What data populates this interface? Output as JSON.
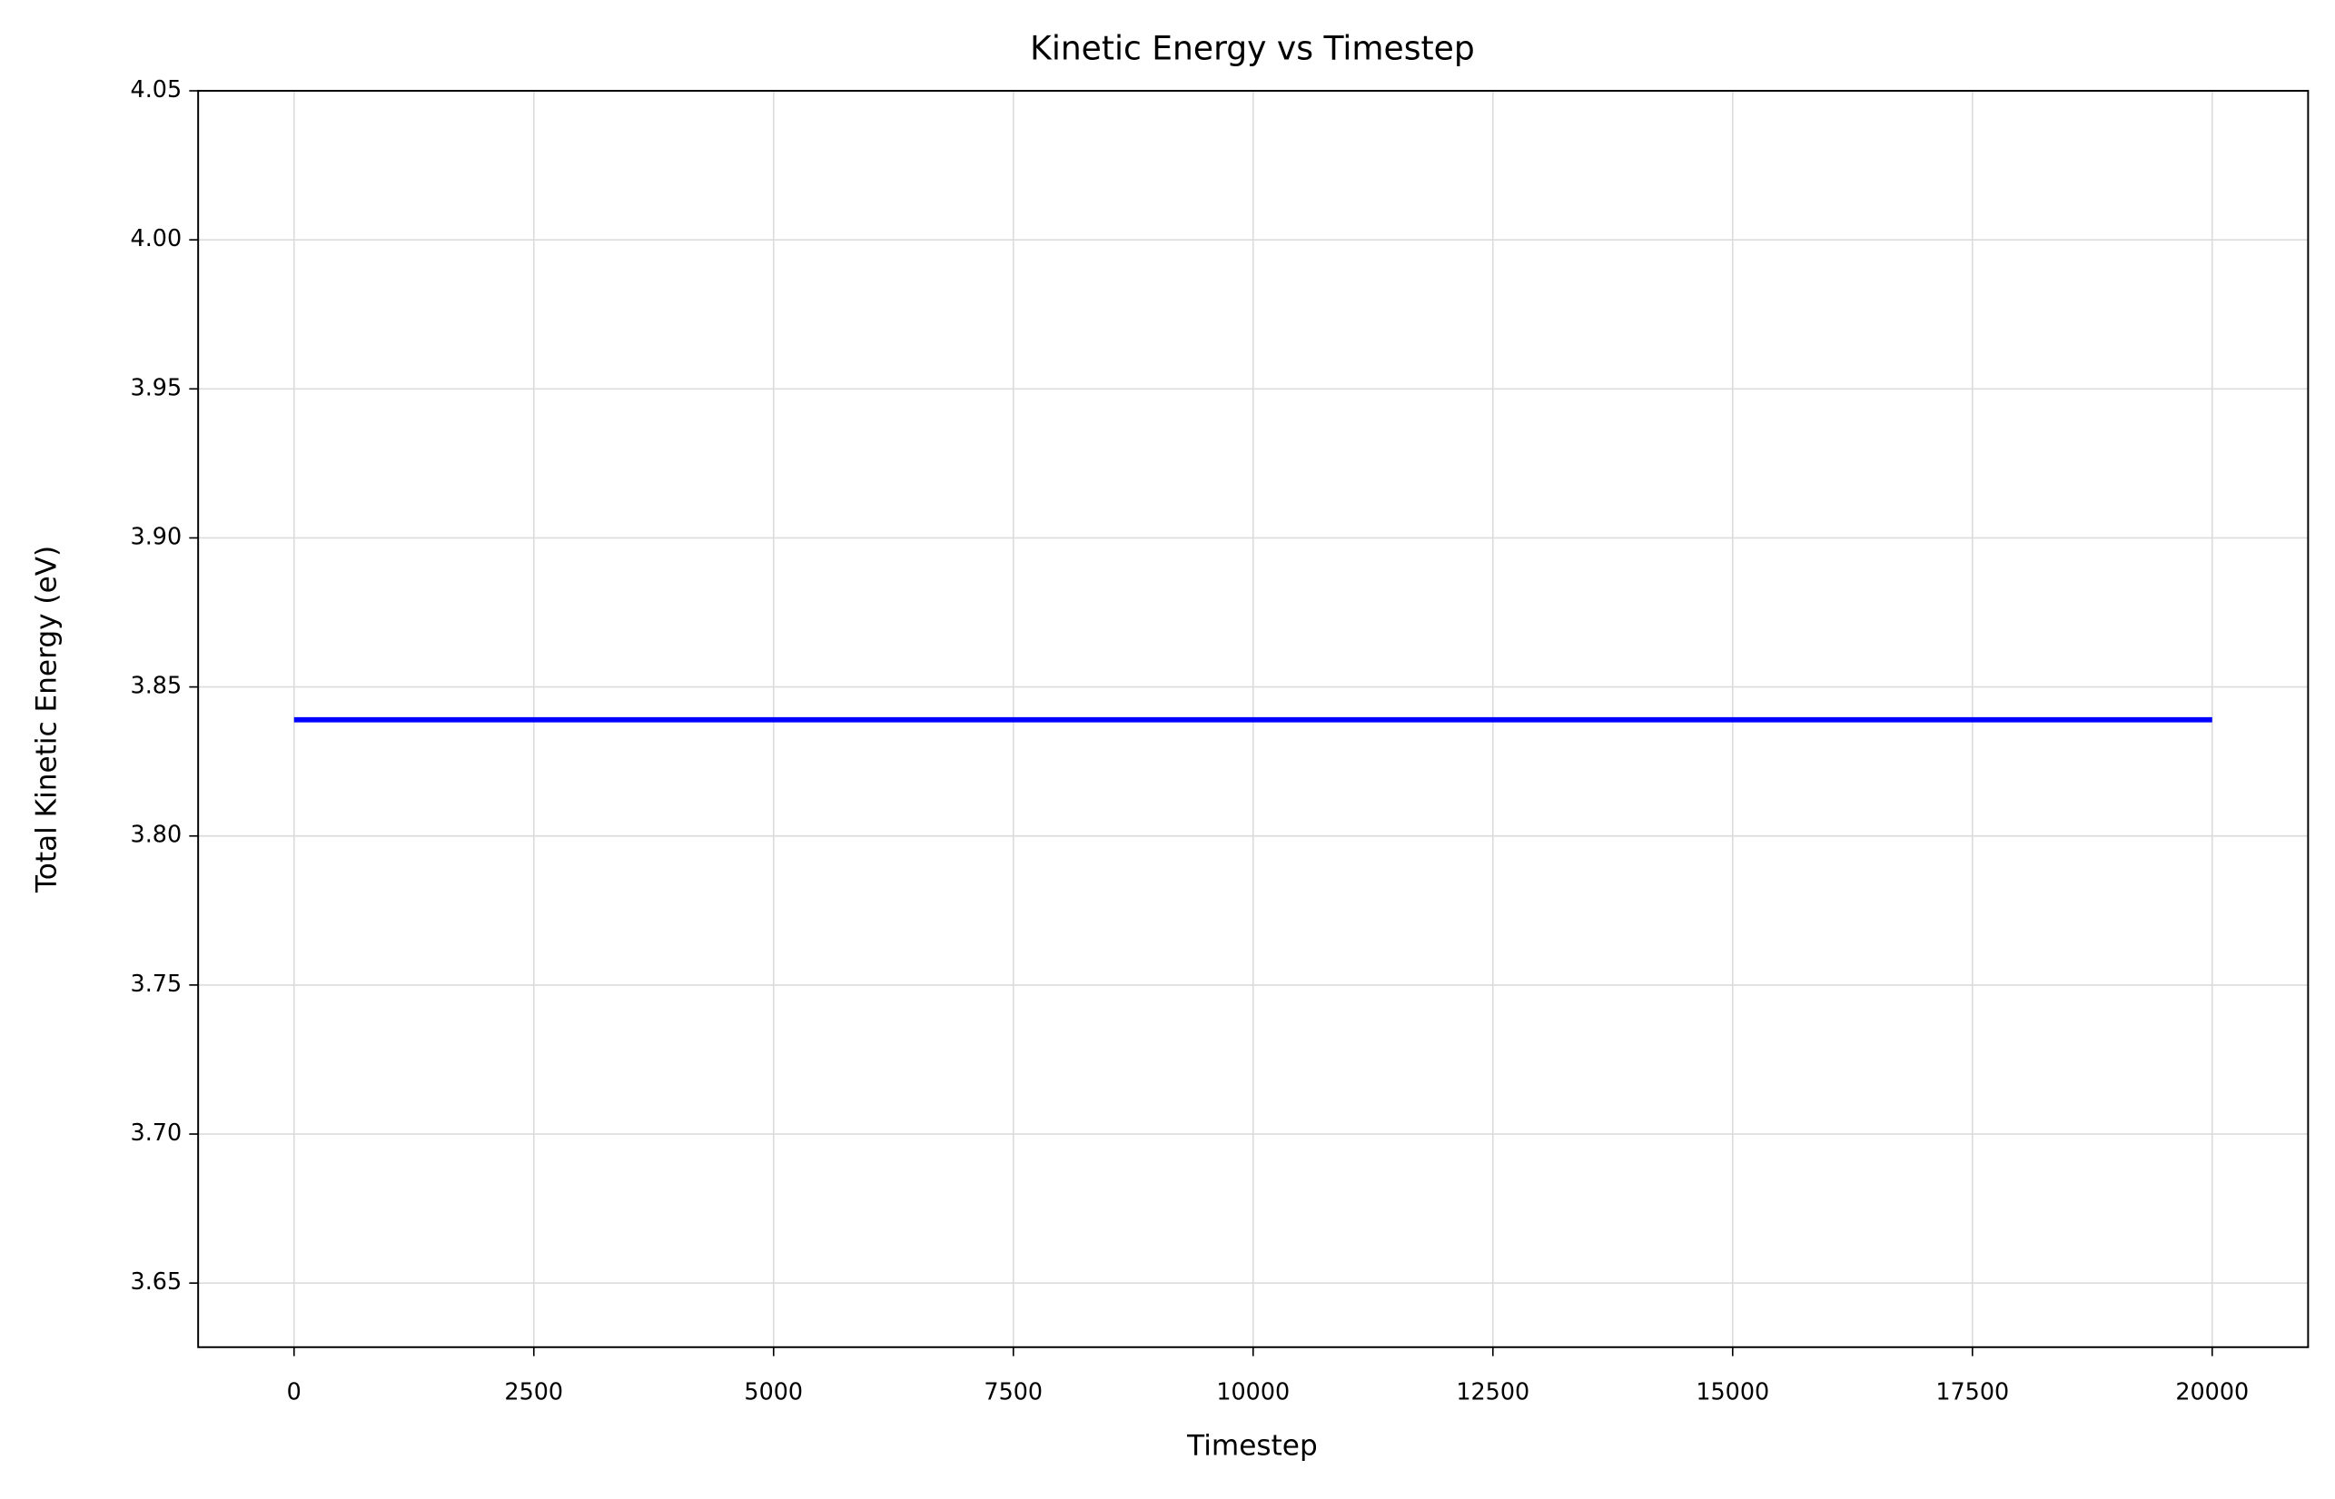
{
  "chart_data": {
    "type": "line",
    "title": "Kinetic Energy vs Timestep",
    "x_label": "Timestep",
    "y_label": "Total Kinetic Energy (eV)",
    "x": [
      0,
      20000
    ],
    "series": [
      {
        "name": "Total Kinetic Energy",
        "color": "#0000ff",
        "values": [
          3.839,
          3.839
        ]
      }
    ],
    "xlim": [
      -1000,
      21000
    ],
    "xticks": [
      0,
      2500,
      5000,
      7500,
      10000,
      12500,
      15000,
      17500,
      20000
    ],
    "ylim": [
      3.6285,
      4.05
    ],
    "yticks": [
      3.65,
      {
        "value": 3.7,
        "label": "3.70"
      },
      3.75,
      {
        "value": 3.8,
        "label": "3.80"
      },
      3.85,
      {
        "value": 3.9,
        "label": "3.90"
      },
      3.95,
      {
        "value": 4.0,
        "label": "4.00"
      },
      4.05
    ],
    "grid": true
  }
}
